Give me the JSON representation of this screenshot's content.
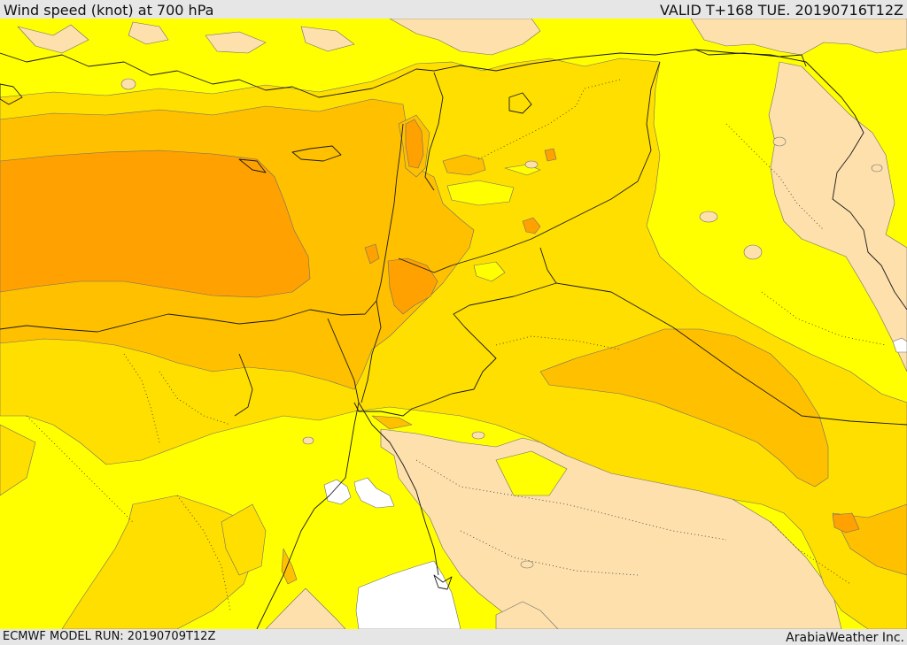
{
  "header": {
    "title": "Wind speed (knot) at 700 hPa",
    "valid": "VALID T+168 TUE. 20190716T12Z"
  },
  "footer": {
    "model_run": "ECMWF MODEL RUN: 20190709T12Z",
    "credit": "ArabiaWeather Inc."
  },
  "map": {
    "type": "wind-speed-contour-map",
    "palette": {
      "calm": "#ffffff",
      "light": "#fde0ac",
      "moderate": "#ffff00",
      "fresh": "#ffdf00",
      "strong": "#ffc000",
      "stronger": "#ffa100"
    }
  }
}
